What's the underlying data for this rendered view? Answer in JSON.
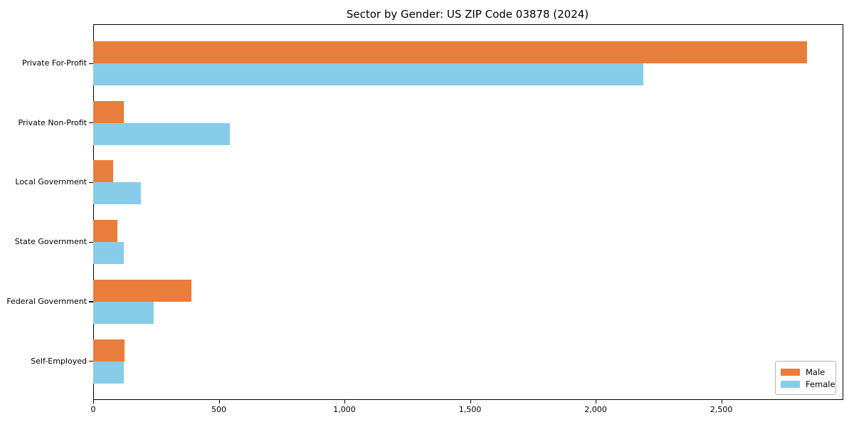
{
  "chart_data": {
    "type": "bar",
    "orientation": "horizontal",
    "title": "Sector by Gender: US ZIP Code 03878 (2024)",
    "categories": [
      "Private For-Profit",
      "Private Non-Profit",
      "Local Government",
      "State Government",
      "Federal Government",
      "Self-Employed"
    ],
    "series": [
      {
        "name": "Male",
        "color": "#e87d3c",
        "values": [
          2840,
          123,
          80,
          95,
          390,
          125
        ]
      },
      {
        "name": "Female",
        "color": "#87cdea",
        "values": [
          2190,
          545,
          190,
          123,
          240,
          122
        ]
      }
    ],
    "xlabel": "",
    "ylabel": "",
    "xlim": [
      0,
      2980
    ],
    "xticks": [
      0,
      500,
      1000,
      1500,
      2000,
      2500
    ],
    "xtick_labels": [
      "0",
      "500",
      "1,000",
      "1,500",
      "2,000",
      "2,500"
    ],
    "grid": false,
    "legend_position": "lower right",
    "legend": {
      "entries": [
        {
          "label": "Male",
          "color": "#e87d3c"
        },
        {
          "label": "Female",
          "color": "#87cdea"
        }
      ]
    }
  }
}
